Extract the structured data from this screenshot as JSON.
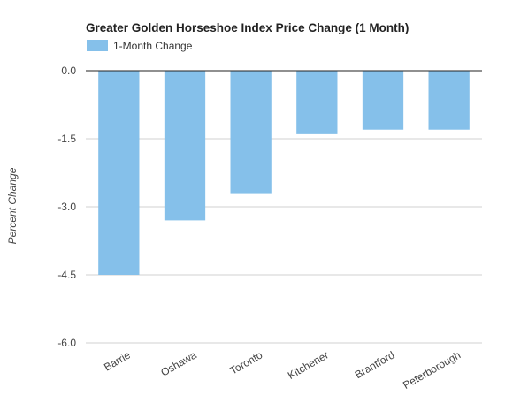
{
  "chart_data": {
    "type": "bar",
    "title": "Greater Golden Horseshoe Index Price Change (1 Month)",
    "xlabel": "",
    "ylabel": "Percent Change",
    "categories": [
      "Barrie",
      "Oshawa",
      "Toronto",
      "Kitchener",
      "Brantford",
      "Peterborough"
    ],
    "series": [
      {
        "name": "1-Month Change",
        "values": [
          -4.5,
          -3.3,
          -2.7,
          -1.4,
          -1.3,
          -1.3
        ]
      }
    ],
    "ylim": [
      -6.0,
      0.0
    ],
    "yticks": [
      0.0,
      -1.5,
      -3.0,
      -4.5,
      -6.0
    ],
    "ytick_labels": [
      "0.0",
      "-1.5",
      "-3.0",
      "-4.5",
      "-6.0"
    ],
    "grid": true,
    "legend_position": "top-left",
    "colors": {
      "bar": "#85c0ea",
      "grid": "#d0d0d0",
      "zero_line": "#222222"
    }
  }
}
